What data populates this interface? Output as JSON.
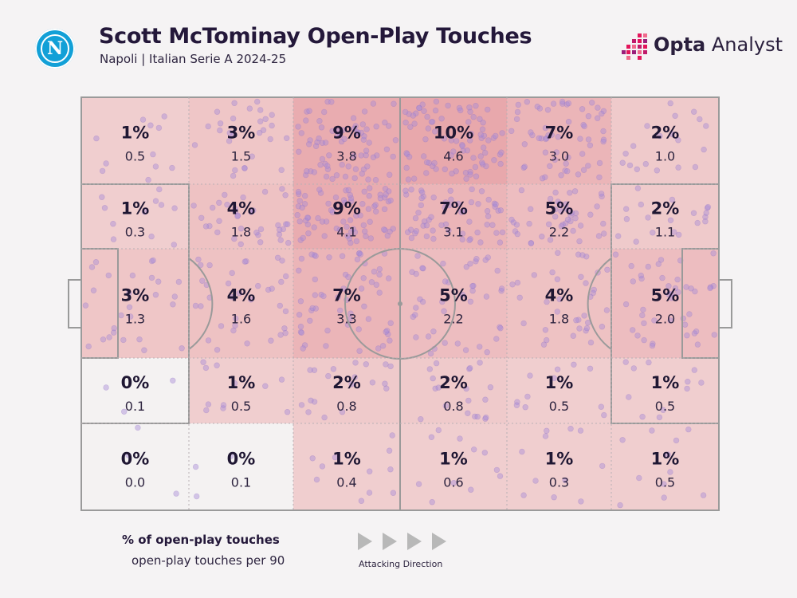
{
  "header": {
    "title": "Scott McTominay Open-Play Touches",
    "subtitle": "Napoli | Italian Serie A 2024-25",
    "club_logo_letter": "N",
    "brand_bold": "Opta",
    "brand_light": " Analyst"
  },
  "colors": {
    "background": "#f5f3f4",
    "heat_base": "#f3dada",
    "heat_max": "#e8a8ac",
    "touch_dot": "#a98cd6",
    "pitch_line": "#9a9a9a",
    "logo_blue": "#12a0d7"
  },
  "legend": {
    "pct_label": "% of open-play touches",
    "p90_label": "open-play touches per 90",
    "direction_label": "Attacking Direction"
  },
  "chart_data": {
    "type": "heatmap",
    "title": "Scott McTominay Open-Play Touches",
    "subtitle": "Napoli | Italian Serie A 2024-25",
    "rows": 5,
    "cols": 6,
    "attacking_direction": "right",
    "cells": [
      [
        {
          "pct": "1%",
          "p90": "0.5"
        },
        {
          "pct": "3%",
          "p90": "1.5"
        },
        {
          "pct": "9%",
          "p90": "3.8"
        },
        {
          "pct": "10%",
          "p90": "4.6"
        },
        {
          "pct": "7%",
          "p90": "3.0"
        },
        {
          "pct": "2%",
          "p90": "1.0"
        }
      ],
      [
        {
          "pct": "1%",
          "p90": "0.3"
        },
        {
          "pct": "4%",
          "p90": "1.8"
        },
        {
          "pct": "9%",
          "p90": "4.1"
        },
        {
          "pct": "7%",
          "p90": "3.1"
        },
        {
          "pct": "5%",
          "p90": "2.2"
        },
        {
          "pct": "2%",
          "p90": "1.1"
        }
      ],
      [
        {
          "pct": "3%",
          "p90": "1.3"
        },
        {
          "pct": "4%",
          "p90": "1.6"
        },
        {
          "pct": "7%",
          "p90": "3.3"
        },
        {
          "pct": "5%",
          "p90": "2.2"
        },
        {
          "pct": "4%",
          "p90": "1.8"
        },
        {
          "pct": "5%",
          "p90": "2.0"
        }
      ],
      [
        {
          "pct": "0%",
          "p90": "0.1"
        },
        {
          "pct": "1%",
          "p90": "0.5"
        },
        {
          "pct": "2%",
          "p90": "0.8"
        },
        {
          "pct": "2%",
          "p90": "0.8"
        },
        {
          "pct": "1%",
          "p90": "0.5"
        },
        {
          "pct": "1%",
          "p90": "0.5"
        }
      ],
      [
        {
          "pct": "0%",
          "p90": "0.0"
        },
        {
          "pct": "0%",
          "p90": "0.1"
        },
        {
          "pct": "1%",
          "p90": "0.4"
        },
        {
          "pct": "1%",
          "p90": "0.6"
        },
        {
          "pct": "1%",
          "p90": "0.3"
        },
        {
          "pct": "1%",
          "p90": "0.5"
        }
      ]
    ]
  }
}
